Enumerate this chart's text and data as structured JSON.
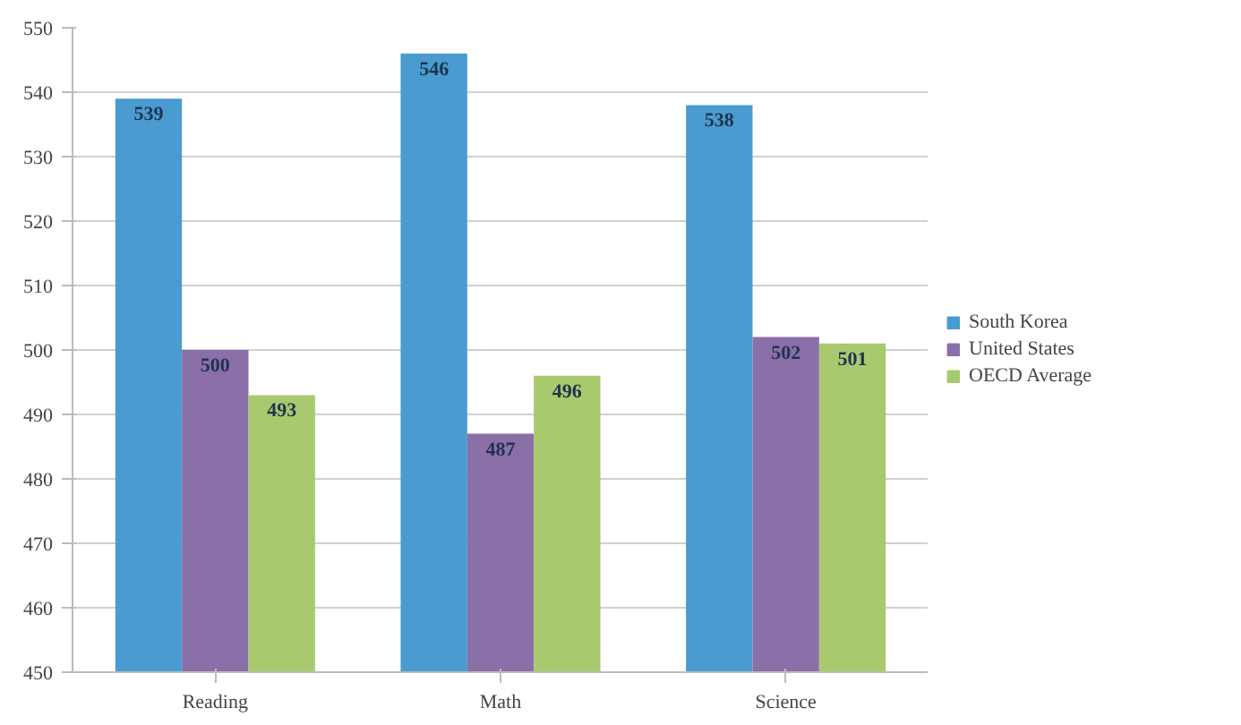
{
  "chart_data": {
    "type": "bar",
    "categories": [
      "Reading",
      "Math",
      "Science"
    ],
    "series": [
      {
        "name": "South Korea",
        "color": "#4a9bd0",
        "values": [
          539,
          546,
          538
        ]
      },
      {
        "name": "United States",
        "color": "#8a6fa8",
        "values": [
          500,
          487,
          502
        ]
      },
      {
        "name": "OECD Average",
        "color": "#a9c96e",
        "values": [
          493,
          496,
          501
        ]
      }
    ],
    "ylim": [
      450,
      550
    ],
    "yticks": [
      450,
      460,
      470,
      480,
      490,
      500,
      510,
      520,
      530,
      540,
      550
    ],
    "grid": "y",
    "legend": "right",
    "data_labels": true
  }
}
